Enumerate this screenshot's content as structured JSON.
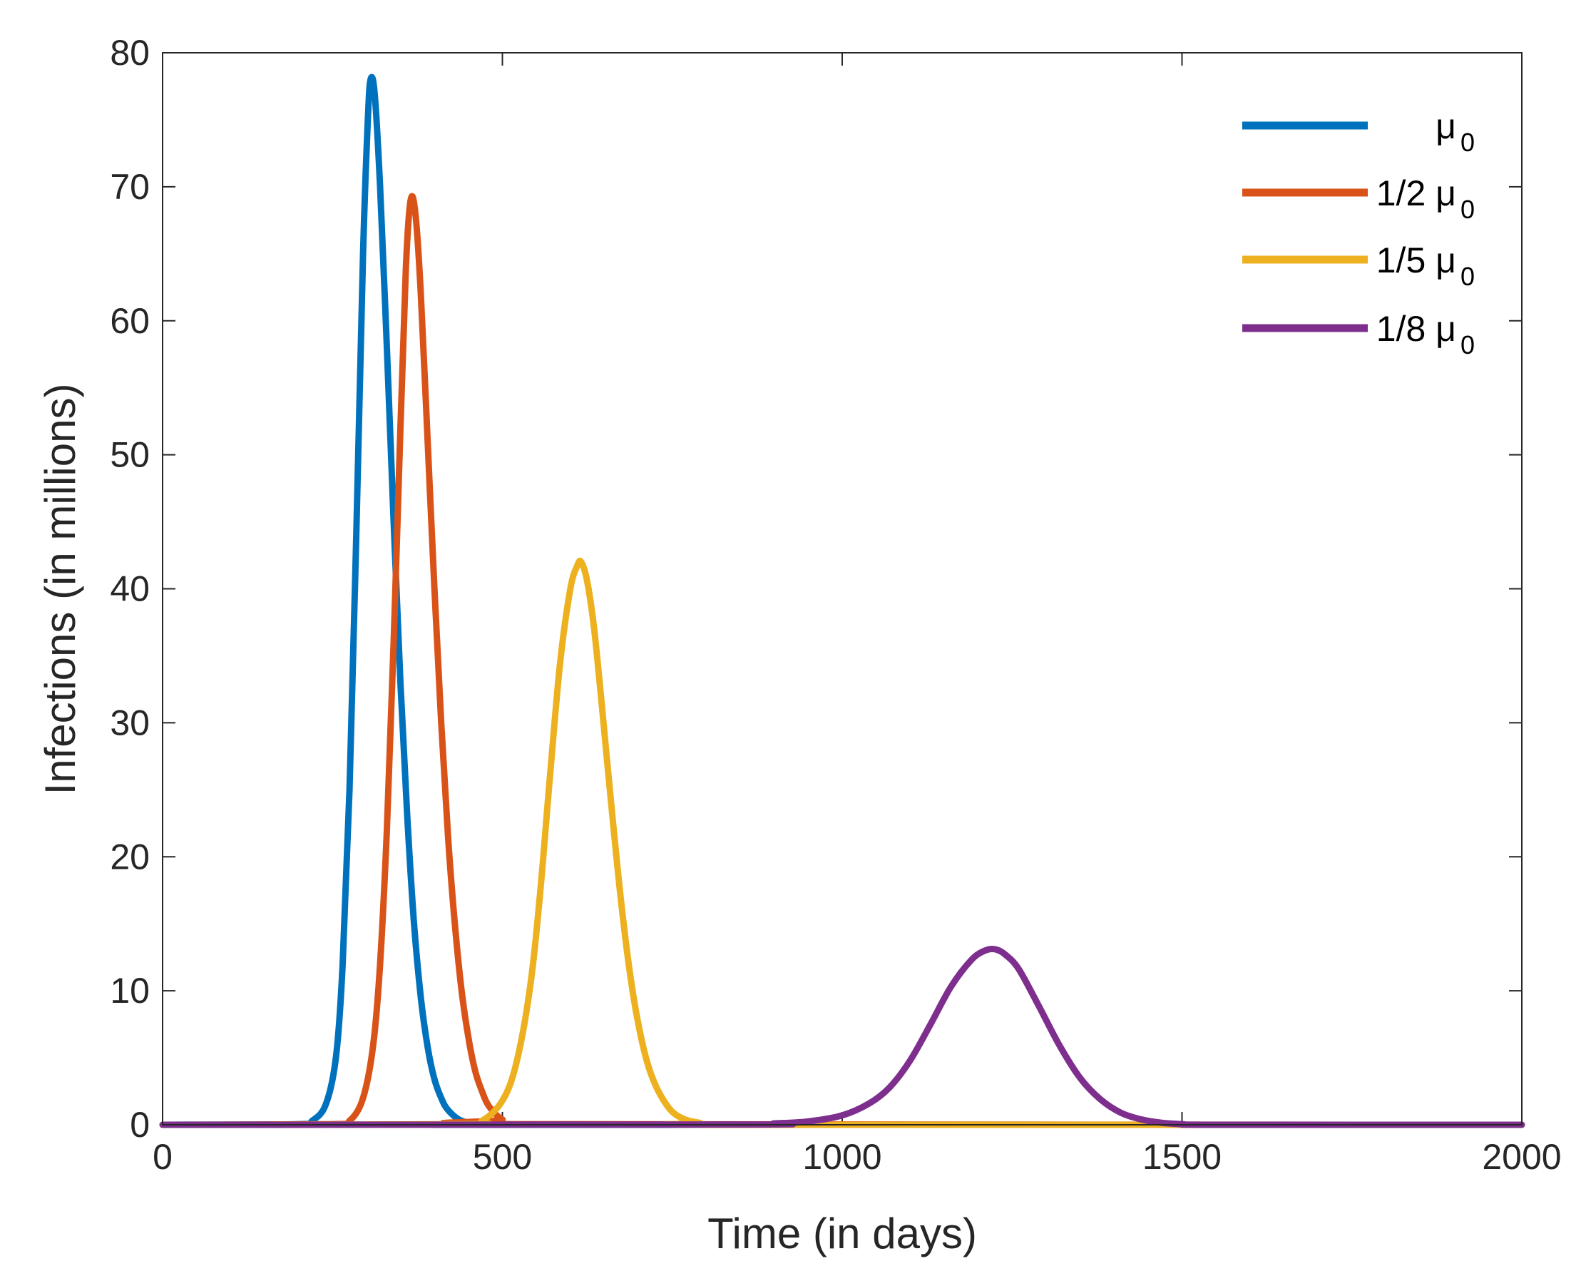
{
  "chart_data": {
    "type": "line",
    "title": "",
    "xlabel": "Time (in days)",
    "ylabel": "Infections (in millions)",
    "xlim": [
      0,
      2000
    ],
    "ylim": [
      0,
      80
    ],
    "xticks": [
      0,
      500,
      1000,
      1500,
      2000
    ],
    "yticks": [
      0,
      10,
      20,
      30,
      40,
      50,
      60,
      70,
      80
    ],
    "xtick_labels": [
      "0",
      "500",
      "1000",
      "1500",
      "2000"
    ],
    "ytick_labels": [
      "0",
      "10",
      "20",
      "30",
      "40",
      "50",
      "60",
      "70",
      "80"
    ],
    "grid": false,
    "legend_position": "top-right",
    "series": [
      {
        "name": "μ0",
        "legend_prefix": "",
        "legend_symbol": "μ",
        "legend_subscript": "0",
        "color": "#0072BD",
        "x": [
          0,
          200,
          220,
          240,
          255,
          265,
          275,
          285,
          295,
          302,
          306,
          312,
          320,
          330,
          340,
          350,
          360,
          370,
          380,
          390,
          400,
          410,
          420,
          440,
          470,
          520,
          2000
        ],
        "y": [
          0,
          0.05,
          0.3,
          1.5,
          5,
          12,
          25,
          44,
          65,
          75,
          78,
          77,
          70,
          58,
          45,
          33,
          23,
          15,
          9.5,
          5.8,
          3.4,
          2,
          1.1,
          0.3,
          0.05,
          0,
          0
        ]
      },
      {
        "name": "1/2 μ0",
        "legend_prefix": "1/2 ",
        "legend_symbol": "μ",
        "legend_subscript": "0",
        "color": "#D95319",
        "x": [
          0,
          250,
          275,
          295,
          310,
          320,
          330,
          340,
          350,
          358,
          365,
          372,
          380,
          390,
          400,
          410,
          420,
          430,
          440,
          450,
          460,
          470,
          480,
          500,
          530,
          2000
        ],
        "y": [
          0,
          0.05,
          0.3,
          2,
          6,
          12,
          22,
          36,
          52,
          64,
          69,
          68,
          62,
          51,
          40,
          30,
          21.5,
          15,
          10,
          6.5,
          4,
          2.5,
          1.4,
          0.4,
          0.05,
          0
        ]
      },
      {
        "name": "1/5 μ0",
        "legend_prefix": "1/5 ",
        "legend_symbol": "μ",
        "legend_subscript": "0",
        "color": "#EDB120",
        "x": [
          0,
          440,
          470,
          500,
          520,
          540,
          555,
          570,
          585,
          600,
          610,
          616,
          625,
          635,
          645,
          660,
          675,
          690,
          705,
          720,
          740,
          760,
          790,
          840,
          2000
        ],
        "y": [
          0,
          0.05,
          0.3,
          1.8,
          4.5,
          10,
          17,
          26,
          34.5,
          40,
          41.7,
          42,
          40.5,
          37,
          32,
          24,
          16.5,
          10.5,
          6.3,
          3.6,
          1.6,
          0.6,
          0.15,
          0,
          0
        ]
      },
      {
        "name": "1/8 μ0",
        "legend_prefix": "1/8 ",
        "legend_symbol": "μ",
        "legend_subscript": "0",
        "color": "#7E2F8E",
        "x": [
          0,
          850,
          900,
          950,
          1000,
          1040,
          1070,
          1100,
          1130,
          1160,
          1190,
          1210,
          1225,
          1240,
          1260,
          1290,
          1320,
          1350,
          1380,
          1410,
          1440,
          1470,
          1500,
          1550,
          2000
        ],
        "y": [
          0,
          0.02,
          0.1,
          0.25,
          0.7,
          1.6,
          2.8,
          4.8,
          7.5,
          10.3,
          12.3,
          13,
          13.1,
          12.7,
          11.6,
          8.8,
          5.9,
          3.5,
          1.9,
          0.9,
          0.4,
          0.15,
          0.05,
          0,
          0
        ]
      }
    ]
  }
}
